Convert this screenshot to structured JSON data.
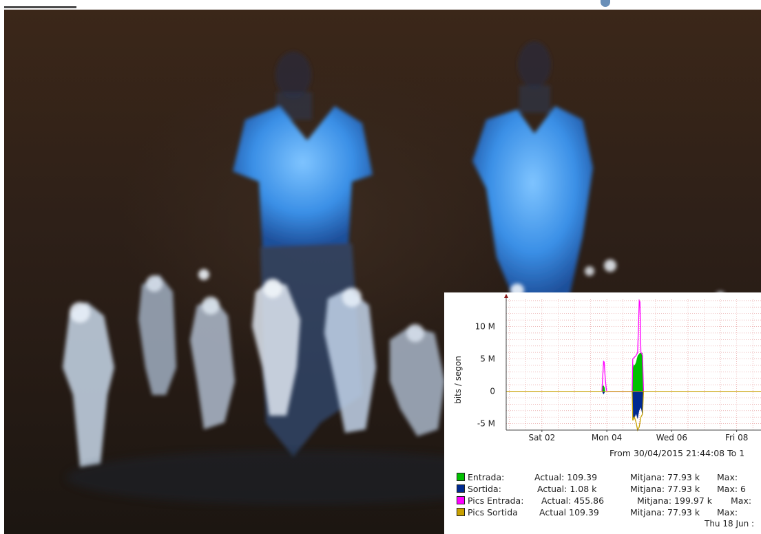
{
  "chart_data": {
    "type": "area",
    "ylabel": "bits / segon",
    "yticks": [
      "10 M",
      "5 M",
      "0",
      "-5 M"
    ],
    "ytick_values": [
      10,
      5,
      0,
      -5
    ],
    "ylim": [
      -6,
      14.2
    ],
    "xticks": [
      "Sat 02",
      "Mon 04",
      "Wed 06",
      "Fri 08"
    ],
    "xtick_days": [
      2,
      4,
      6,
      8
    ],
    "xlim": [
      0.9,
      8.75
    ],
    "grid": true,
    "series": [
      {
        "name": "Entrada",
        "color": "#00c000",
        "x": [
          3.85,
          3.87,
          3.9,
          3.93,
          3.95,
          4.78,
          4.8,
          4.83,
          4.86,
          4.9,
          4.95,
          5.0,
          5.05,
          5.1,
          5.13
        ],
        "y": [
          0,
          0.8,
          0.9,
          0.6,
          0,
          0,
          3.5,
          4.2,
          4.0,
          4.5,
          5.5,
          5.8,
          6.0,
          5.9,
          0
        ]
      },
      {
        "name": "Sortida",
        "color": "#002a90",
        "x": [
          3.85,
          3.9,
          3.95,
          4.78,
          4.8,
          4.85,
          4.9,
          4.95,
          5.0,
          5.05,
          5.1,
          5.13
        ],
        "y": [
          0,
          -0.5,
          0,
          0,
          -4.0,
          -4.2,
          -3.5,
          -4.3,
          -3.0,
          -2.5,
          -3.8,
          0
        ]
      },
      {
        "name": "Pics Entrada",
        "color": "#ff00ff",
        "x": [
          3.85,
          3.9,
          3.92,
          3.95,
          3.98,
          4.0,
          4.78,
          4.8,
          4.9,
          4.95,
          5.0,
          5.02,
          5.05,
          5.08,
          5.1,
          5.13
        ],
        "y": [
          0,
          4.6,
          4.5,
          2.0,
          0.5,
          0,
          0,
          5.0,
          5.5,
          6.0,
          14.0,
          13.8,
          6.0,
          5.8,
          5.5,
          0
        ]
      },
      {
        "name": "Pics Sortida",
        "color": "#c8a000",
        "x": [
          4.78,
          4.8,
          4.85,
          4.9,
          4.95,
          5.0,
          5.05,
          5.1,
          5.13
        ],
        "y": [
          0,
          -4.5,
          -4.0,
          -4.8,
          -6.0,
          -5.5,
          -4.0,
          -3.5,
          0
        ]
      }
    ],
    "date_range_text": "From 30/04/2015 21:44:08 To 1",
    "legend": [
      {
        "label": "Entrada:",
        "color": "#00c000",
        "actual_label": "Actual:",
        "actual": "109.39",
        "mitjana_label": "Mitjana:",
        "mitjana": "77.93 k",
        "max_label": "Max:",
        "max": ""
      },
      {
        "label": "Sortida:",
        "color": "#002a90",
        "actual_label": "Actual:",
        "actual": "1.08 k",
        "mitjana_label": "Mitjana:",
        "mitjana": "77.93 k",
        "max_label": "Max:",
        "max": "6"
      },
      {
        "label": "Pics Entrada:",
        "color": "#ff00ff",
        "actual_label": "Actual:",
        "actual": "455.86",
        "mitjana_label": "Mitjana:",
        "mitjana": "199.97 k",
        "max_label": "Max:",
        "max": ""
      },
      {
        "label": "Pics Sortida",
        "color": "#c8a000",
        "actual_label": "Actual",
        "actual": "109.39",
        "mitjana_label": "Mitjana:",
        "mitjana": "77.93 k",
        "max_label": "Max:",
        "max": ""
      }
    ],
    "footer_text": "Thu 18 Jun :"
  }
}
